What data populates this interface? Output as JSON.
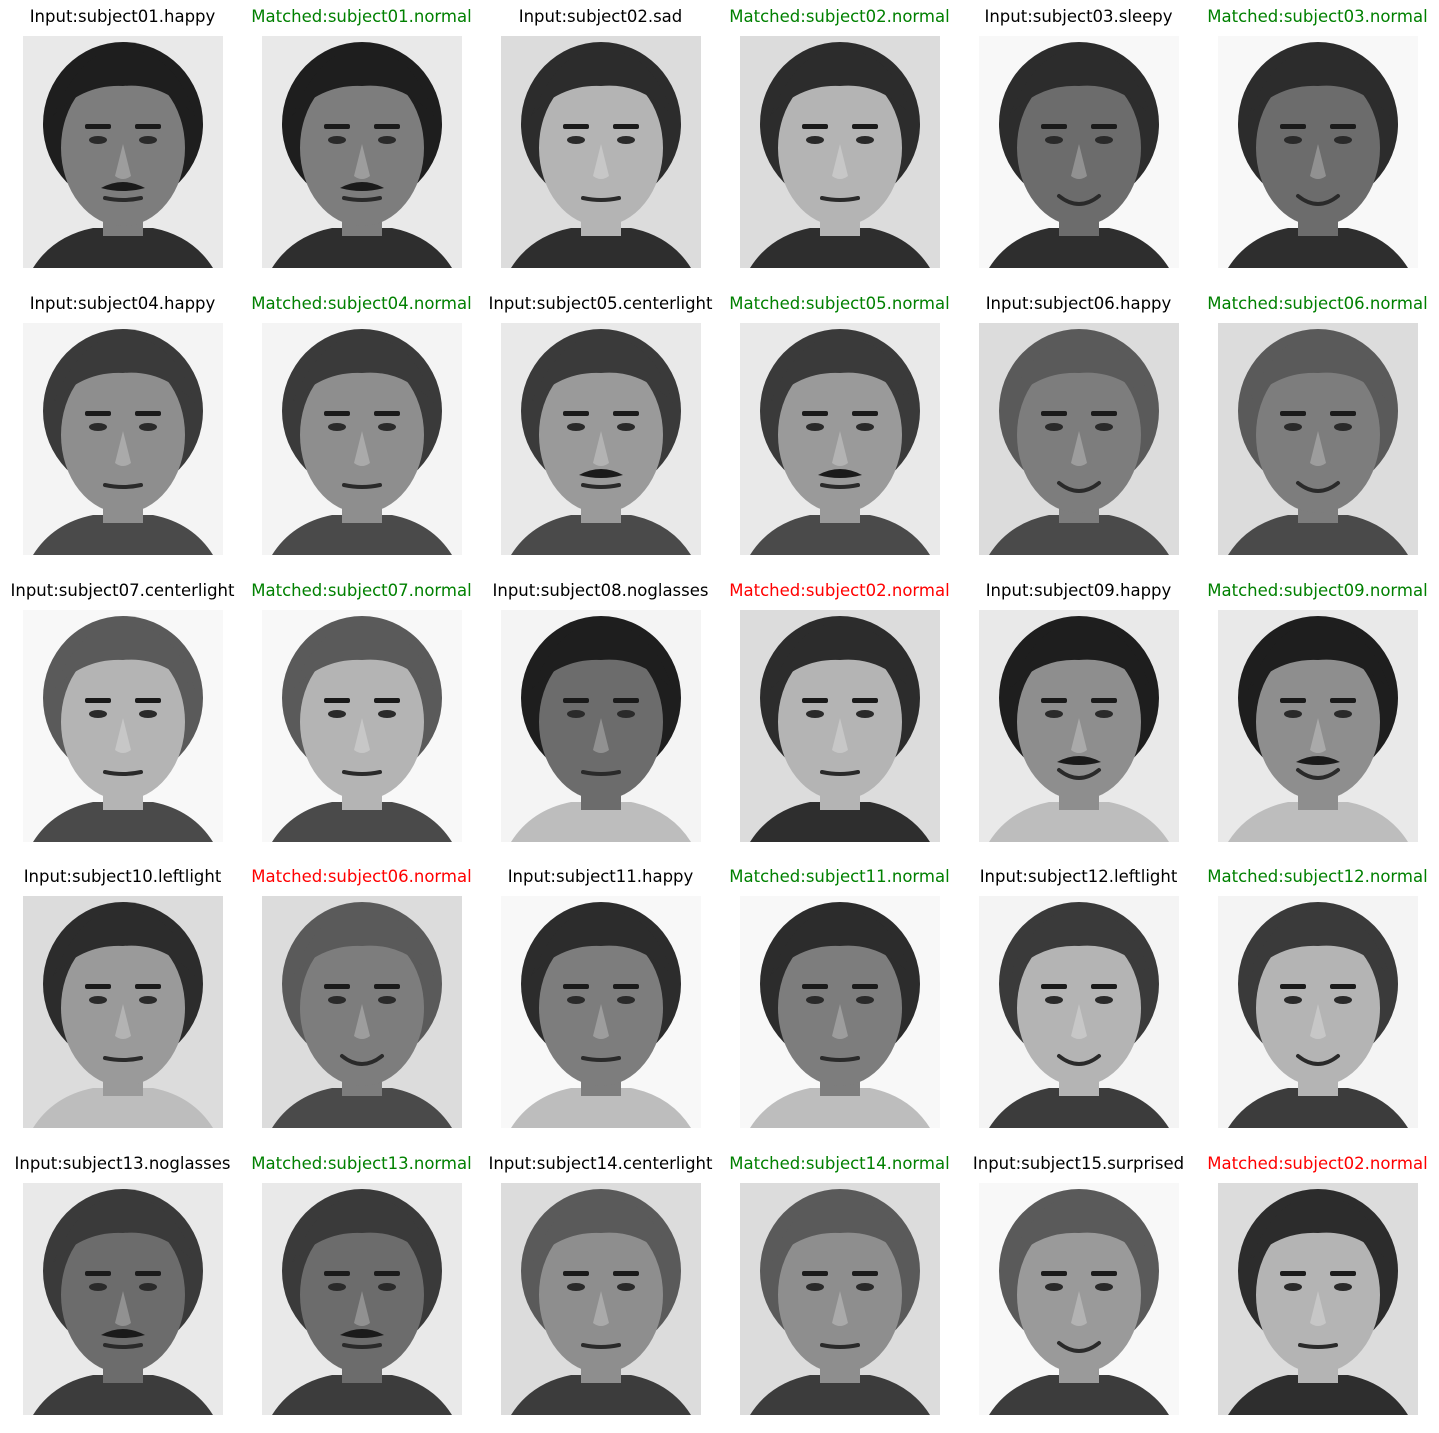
{
  "colors": {
    "input_title": "#000000",
    "match_correct": "#008000",
    "match_incorrect": "#ff0000",
    "background": "#ffffff"
  },
  "rows": [
    [
      {
        "label": "Input:subject01.happy",
        "kind": "input",
        "photo": "face-icon"
      },
      {
        "label": "Matched:subject01.normal",
        "kind": "match",
        "correct": true,
        "photo": "face-icon"
      },
      {
        "label": "Input:subject02.sad",
        "kind": "input",
        "photo": "face-icon"
      },
      {
        "label": "Matched:subject02.normal",
        "kind": "match",
        "correct": true,
        "photo": "face-icon"
      },
      {
        "label": "Input:subject03.sleepy",
        "kind": "input",
        "photo": "face-icon"
      },
      {
        "label": "Matched:subject03.normal",
        "kind": "match",
        "correct": true,
        "photo": "face-icon"
      }
    ],
    [
      {
        "label": "Input:subject04.happy",
        "kind": "input",
        "photo": "face-icon"
      },
      {
        "label": "Matched:subject04.normal",
        "kind": "match",
        "correct": true,
        "photo": "face-icon"
      },
      {
        "label": "Input:subject05.centerlight",
        "kind": "input",
        "photo": "face-icon"
      },
      {
        "label": "Matched:subject05.normal",
        "kind": "match",
        "correct": true,
        "photo": "face-icon"
      },
      {
        "label": "Input:subject06.happy",
        "kind": "input",
        "photo": "face-icon"
      },
      {
        "label": "Matched:subject06.normal",
        "kind": "match",
        "correct": true,
        "photo": "face-icon"
      }
    ],
    [
      {
        "label": "Input:subject07.centerlight",
        "kind": "input",
        "photo": "face-icon"
      },
      {
        "label": "Matched:subject07.normal",
        "kind": "match",
        "correct": true,
        "photo": "face-icon"
      },
      {
        "label": "Input:subject08.noglasses",
        "kind": "input",
        "photo": "face-icon"
      },
      {
        "label": "Matched:subject02.normal",
        "kind": "match",
        "correct": false,
        "photo": "face-icon"
      },
      {
        "label": "Input:subject09.happy",
        "kind": "input",
        "photo": "face-icon"
      },
      {
        "label": "Matched:subject09.normal",
        "kind": "match",
        "correct": true,
        "photo": "face-icon"
      }
    ],
    [
      {
        "label": "Input:subject10.leftlight",
        "kind": "input",
        "photo": "face-icon"
      },
      {
        "label": "Matched:subject06.normal",
        "kind": "match",
        "correct": false,
        "photo": "face-icon"
      },
      {
        "label": "Input:subject11.happy",
        "kind": "input",
        "photo": "face-icon"
      },
      {
        "label": "Matched:subject11.normal",
        "kind": "match",
        "correct": true,
        "photo": "face-icon"
      },
      {
        "label": "Input:subject12.leftlight",
        "kind": "input",
        "photo": "face-icon"
      },
      {
        "label": "Matched:subject12.normal",
        "kind": "match",
        "correct": true,
        "photo": "face-icon"
      }
    ],
    [
      {
        "label": "Input:subject13.noglasses",
        "kind": "input",
        "photo": "face-icon"
      },
      {
        "label": "Matched:subject13.normal",
        "kind": "match",
        "correct": true,
        "photo": "face-icon"
      },
      {
        "label": "Input:subject14.centerlight",
        "kind": "input",
        "photo": "face-icon"
      },
      {
        "label": "Matched:subject14.normal",
        "kind": "match",
        "correct": true,
        "photo": "face-icon"
      },
      {
        "label": "Input:subject15.surprised",
        "kind": "input",
        "photo": "face-icon"
      },
      {
        "label": "Matched:subject02.normal",
        "kind": "match",
        "correct": false,
        "photo": "face-icon"
      }
    ]
  ]
}
